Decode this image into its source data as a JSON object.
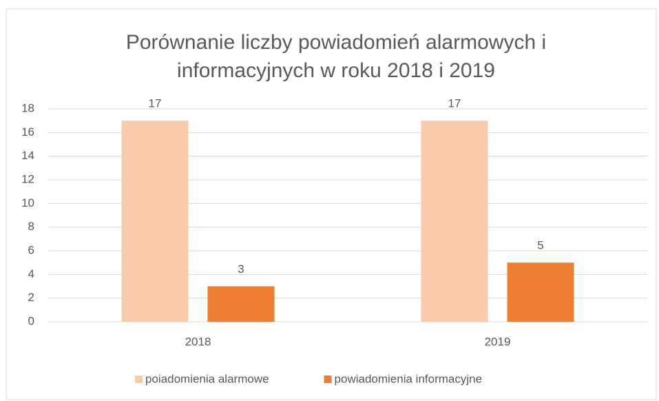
{
  "chart_data": {
    "type": "bar",
    "title": [
      "Porównanie liczby powiadomień alarmowych i",
      "informacyjnych w roku 2018 i 2019"
    ],
    "categories": [
      "2018",
      "2019"
    ],
    "series": [
      {
        "name": "poiadomienia alarmowe",
        "color": "#f8cbad",
        "values": [
          17,
          17
        ]
      },
      {
        "name": "powiadomienia informacyjne",
        "color": "#ed7d31",
        "values": [
          3,
          5
        ]
      }
    ],
    "ylim": [
      0,
      18
    ],
    "yticks": [
      0,
      2,
      4,
      6,
      8,
      10,
      12,
      14,
      16,
      18
    ],
    "grid": true,
    "legend": "bottom"
  }
}
